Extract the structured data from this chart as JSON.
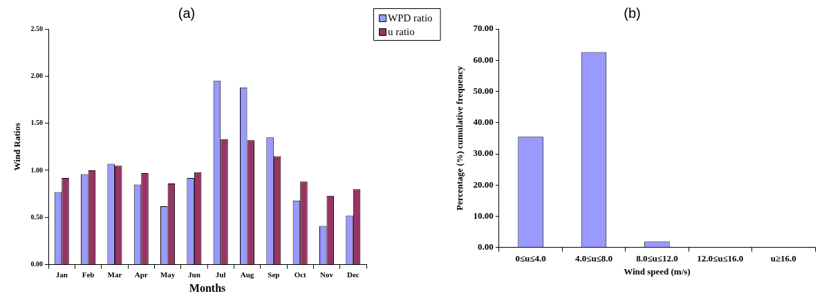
{
  "chart_data": [
    {
      "type": "bar",
      "title": "(a)",
      "xlabel": "Months",
      "ylabel": "Wind Ratios",
      "categories": [
        "Jan",
        "Feb",
        "Mar",
        "Apr",
        "May",
        "Jun",
        "Jul",
        "Aug",
        "Sep",
        "Oct",
        "Nov",
        "Dec"
      ],
      "series": [
        {
          "name": "WPD ratio",
          "color": "#9999ff",
          "values": [
            0.77,
            0.96,
            1.07,
            0.85,
            0.62,
            0.92,
            1.95,
            1.88,
            1.35,
            0.68,
            0.41,
            0.52
          ]
        },
        {
          "name": "u ratio",
          "color": "#993366",
          "values": [
            0.92,
            1.0,
            1.05,
            0.97,
            0.86,
            0.98,
            1.33,
            1.32,
            1.15,
            0.88,
            0.73,
            0.8
          ]
        }
      ],
      "ylim": [
        0,
        2.5
      ],
      "yticks": [
        {
          "value": 0,
          "label": "0.00"
        },
        {
          "value": 0.5,
          "label": "0.50"
        },
        {
          "value": 1,
          "label": "1.00"
        },
        {
          "value": 1.5,
          "label": "1.50"
        },
        {
          "value": 2,
          "label": "2.00"
        },
        {
          "value": 2.5,
          "label": "2.50"
        }
      ],
      "grid": false,
      "legend": "top right"
    },
    {
      "type": "bar",
      "title": "(b)",
      "xlabel": "Wind speed (m/s)",
      "ylabel": "Percentage (%) cumulative frequency",
      "categories": [
        "0≤u≤4.0",
        "4.0≤u≤8.0",
        "8.0≤u≤12.0",
        "12.0≤u≤16.0",
        "u≥16.0"
      ],
      "series": [
        {
          "color": "#9999ff",
          "values": [
            35.5,
            62.6,
            1.9,
            0,
            0
          ]
        }
      ],
      "ylim": [
        0,
        70
      ],
      "yticks": [
        {
          "value": 0,
          "label": "0.00"
        },
        {
          "value": 10,
          "label": "10.00"
        },
        {
          "value": 20,
          "label": "20.00"
        },
        {
          "value": 30,
          "label": "30.00"
        },
        {
          "value": 40,
          "label": "40.00"
        },
        {
          "value": 50,
          "label": "50.00"
        },
        {
          "value": 60,
          "label": "60.00"
        },
        {
          "value": 70,
          "label": "70.00"
        }
      ],
      "grid": false
    }
  ]
}
